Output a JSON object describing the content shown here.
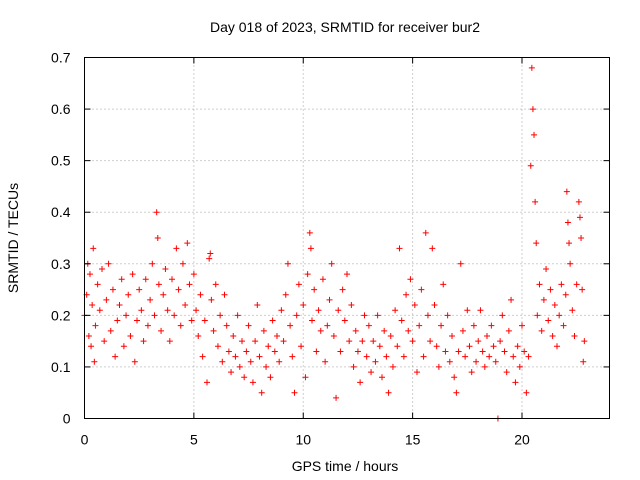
{
  "chart_data": {
    "type": "scatter",
    "title": "Day 018 of 2023, SRMTID for receiver bur2",
    "xlabel": "GPS time / hours",
    "ylabel": "SRMTID / TECUs",
    "xlim": [
      0,
      24
    ],
    "ylim": [
      0,
      0.7
    ],
    "xticks": [
      0,
      5,
      10,
      15,
      20
    ],
    "yticks": [
      0,
      0.1,
      0.2,
      0.3,
      0.4,
      0.5,
      0.6,
      0.7
    ],
    "ytick_labels": [
      "0",
      "0.1",
      "0.2",
      "0.3",
      "0.4",
      "0.5",
      "0.6",
      "0.7"
    ],
    "grid": true,
    "marker": "+",
    "color": "#ff0000",
    "series": [
      {
        "name": "bur2",
        "points": [
          [
            0.0,
            0.2
          ],
          [
            0.1,
            0.24
          ],
          [
            0.15,
            0.3
          ],
          [
            0.2,
            0.16
          ],
          [
            0.25,
            0.28
          ],
          [
            0.3,
            0.14
          ],
          [
            0.35,
            0.22
          ],
          [
            0.4,
            0.33
          ],
          [
            0.45,
            0.11
          ],
          [
            0.5,
            0.18
          ],
          [
            0.6,
            0.26
          ],
          [
            0.7,
            0.21
          ],
          [
            0.8,
            0.29
          ],
          [
            0.9,
            0.15
          ],
          [
            1.0,
            0.23
          ],
          [
            1.1,
            0.3
          ],
          [
            1.2,
            0.17
          ],
          [
            1.3,
            0.25
          ],
          [
            1.4,
            0.12
          ],
          [
            1.5,
            0.19
          ],
          [
            1.6,
            0.22
          ],
          [
            1.7,
            0.27
          ],
          [
            1.8,
            0.14
          ],
          [
            1.9,
            0.2
          ],
          [
            2.0,
            0.24
          ],
          [
            2.1,
            0.16
          ],
          [
            2.2,
            0.28
          ],
          [
            2.3,
            0.11
          ],
          [
            2.4,
            0.19
          ],
          [
            2.5,
            0.25
          ],
          [
            2.6,
            0.21
          ],
          [
            2.7,
            0.15
          ],
          [
            2.8,
            0.27
          ],
          [
            2.9,
            0.18
          ],
          [
            3.0,
            0.23
          ],
          [
            3.1,
            0.3
          ],
          [
            3.2,
            0.2
          ],
          [
            3.3,
            0.4
          ],
          [
            3.35,
            0.35
          ],
          [
            3.4,
            0.26
          ],
          [
            3.5,
            0.17
          ],
          [
            3.6,
            0.24
          ],
          [
            3.7,
            0.29
          ],
          [
            3.8,
            0.21
          ],
          [
            3.9,
            0.15
          ],
          [
            4.0,
            0.27
          ],
          [
            4.1,
            0.2
          ],
          [
            4.2,
            0.33
          ],
          [
            4.3,
            0.25
          ],
          [
            4.4,
            0.18
          ],
          [
            4.5,
            0.3
          ],
          [
            4.6,
            0.22
          ],
          [
            4.7,
            0.34
          ],
          [
            4.8,
            0.26
          ],
          [
            4.9,
            0.19
          ],
          [
            5.0,
            0.28
          ],
          [
            5.1,
            0.21
          ],
          [
            5.2,
            0.16
          ],
          [
            5.3,
            0.24
          ],
          [
            5.4,
            0.12
          ],
          [
            5.5,
            0.19
          ],
          [
            5.6,
            0.07
          ],
          [
            5.7,
            0.31
          ],
          [
            5.75,
            0.32
          ],
          [
            5.8,
            0.23
          ],
          [
            5.9,
            0.17
          ],
          [
            6.0,
            0.26
          ],
          [
            6.1,
            0.14
          ],
          [
            6.2,
            0.2
          ],
          [
            6.3,
            0.11
          ],
          [
            6.4,
            0.24
          ],
          [
            6.5,
            0.18
          ],
          [
            6.6,
            0.13
          ],
          [
            6.7,
            0.09
          ],
          [
            6.8,
            0.16
          ],
          [
            6.9,
            0.12
          ],
          [
            7.0,
            0.2
          ],
          [
            7.1,
            0.1
          ],
          [
            7.2,
            0.15
          ],
          [
            7.3,
            0.08
          ],
          [
            7.4,
            0.13
          ],
          [
            7.5,
            0.18
          ],
          [
            7.6,
            0.11
          ],
          [
            7.7,
            0.07
          ],
          [
            7.8,
            0.15
          ],
          [
            7.9,
            0.22
          ],
          [
            8.0,
            0.12
          ],
          [
            8.1,
            0.05
          ],
          [
            8.2,
            0.17
          ],
          [
            8.3,
            0.1
          ],
          [
            8.4,
            0.14
          ],
          [
            8.5,
            0.08
          ],
          [
            8.6,
            0.19
          ],
          [
            8.7,
            0.13
          ],
          [
            8.8,
            0.16
          ],
          [
            8.9,
            0.11
          ],
          [
            9.0,
            0.21
          ],
          [
            9.1,
            0.15
          ],
          [
            9.2,
            0.24
          ],
          [
            9.3,
            0.3
          ],
          [
            9.4,
            0.18
          ],
          [
            9.5,
            0.12
          ],
          [
            9.6,
            0.05
          ],
          [
            9.7,
            0.2
          ],
          [
            9.8,
            0.26
          ],
          [
            9.9,
            0.14
          ],
          [
            10.0,
            0.22
          ],
          [
            10.1,
            0.08
          ],
          [
            10.2,
            0.28
          ],
          [
            10.3,
            0.36
          ],
          [
            10.35,
            0.33
          ],
          [
            10.4,
            0.19
          ],
          [
            10.5,
            0.25
          ],
          [
            10.6,
            0.13
          ],
          [
            10.7,
            0.21
          ],
          [
            10.8,
            0.17
          ],
          [
            10.9,
            0.27
          ],
          [
            11.0,
            0.11
          ],
          [
            11.1,
            0.18
          ],
          [
            11.2,
            0.23
          ],
          [
            11.3,
            0.3
          ],
          [
            11.4,
            0.16
          ],
          [
            11.5,
            0.04
          ],
          [
            11.6,
            0.21
          ],
          [
            11.7,
            0.13
          ],
          [
            11.8,
            0.25
          ],
          [
            11.9,
            0.19
          ],
          [
            12.0,
            0.28
          ],
          [
            12.1,
            0.15
          ],
          [
            12.2,
            0.22
          ],
          [
            12.3,
            0.1
          ],
          [
            12.4,
            0.17
          ],
          [
            12.5,
            0.13
          ],
          [
            12.6,
            0.07
          ],
          [
            12.7,
            0.15
          ],
          [
            12.8,
            0.2
          ],
          [
            12.9,
            0.12
          ],
          [
            13.0,
            0.18
          ],
          [
            13.1,
            0.09
          ],
          [
            13.2,
            0.15
          ],
          [
            13.3,
            0.11
          ],
          [
            13.4,
            0.2
          ],
          [
            13.5,
            0.14
          ],
          [
            13.6,
            0.08
          ],
          [
            13.7,
            0.17
          ],
          [
            13.8,
            0.12
          ],
          [
            13.9,
            0.05
          ],
          [
            14.0,
            0.16
          ],
          [
            14.1,
            0.1
          ],
          [
            14.2,
            0.21
          ],
          [
            14.3,
            0.14
          ],
          [
            14.4,
            0.33
          ],
          [
            14.5,
            0.19
          ],
          [
            14.6,
            0.12
          ],
          [
            14.7,
            0.24
          ],
          [
            14.8,
            0.17
          ],
          [
            14.9,
            0.27
          ],
          [
            15.0,
            0.15
          ],
          [
            15.1,
            0.22
          ],
          [
            15.2,
            0.09
          ],
          [
            15.3,
            0.18
          ],
          [
            15.4,
            0.25
          ],
          [
            15.5,
            0.12
          ],
          [
            15.6,
            0.36
          ],
          [
            15.7,
            0.2
          ],
          [
            15.8,
            0.15
          ],
          [
            15.9,
            0.33
          ],
          [
            16.0,
            0.22
          ],
          [
            16.1,
            0.14
          ],
          [
            16.2,
            0.1
          ],
          [
            16.3,
            0.18
          ],
          [
            16.4,
            0.26
          ],
          [
            16.5,
            0.13
          ],
          [
            16.6,
            0.2
          ],
          [
            16.7,
            0.11
          ],
          [
            16.8,
            0.16
          ],
          [
            16.9,
            0.08
          ],
          [
            17.0,
            0.05
          ],
          [
            17.1,
            0.13
          ],
          [
            17.2,
            0.3
          ],
          [
            17.3,
            0.17
          ],
          [
            17.4,
            0.12
          ],
          [
            17.5,
            0.21
          ],
          [
            17.6,
            0.14
          ],
          [
            17.7,
            0.09
          ],
          [
            17.8,
            0.18
          ],
          [
            17.9,
            0.11
          ],
          [
            18.0,
            0.15
          ],
          [
            18.1,
            0.21
          ],
          [
            18.2,
            0.13
          ],
          [
            18.3,
            0.1
          ],
          [
            18.4,
            0.16
          ],
          [
            18.5,
            0.12
          ],
          [
            18.6,
            0.18
          ],
          [
            18.7,
            0.14
          ],
          [
            18.8,
            0.11
          ],
          [
            18.9,
            0.0
          ],
          [
            19.0,
            0.15
          ],
          [
            19.1,
            0.2
          ],
          [
            19.2,
            0.13
          ],
          [
            19.3,
            0.09
          ],
          [
            19.4,
            0.17
          ],
          [
            19.5,
            0.23
          ],
          [
            19.6,
            0.12
          ],
          [
            19.7,
            0.07
          ],
          [
            19.8,
            0.14
          ],
          [
            19.9,
            0.1
          ],
          [
            20.0,
            0.18
          ],
          [
            20.1,
            0.13
          ],
          [
            20.2,
            0.05
          ],
          [
            20.3,
            0.12
          ],
          [
            20.4,
            0.49
          ],
          [
            20.45,
            0.68
          ],
          [
            20.5,
            0.6
          ],
          [
            20.55,
            0.55
          ],
          [
            20.6,
            0.42
          ],
          [
            20.65,
            0.34
          ],
          [
            20.7,
            0.2
          ],
          [
            20.8,
            0.26
          ],
          [
            20.9,
            0.17
          ],
          [
            21.0,
            0.23
          ],
          [
            21.1,
            0.29
          ],
          [
            21.2,
            0.19
          ],
          [
            21.3,
            0.25
          ],
          [
            21.4,
            0.16
          ],
          [
            21.5,
            0.22
          ],
          [
            21.6,
            0.14
          ],
          [
            21.7,
            0.2
          ],
          [
            21.8,
            0.26
          ],
          [
            21.9,
            0.18
          ],
          [
            22.0,
            0.24
          ],
          [
            22.05,
            0.44
          ],
          [
            22.1,
            0.38
          ],
          [
            22.15,
            0.34
          ],
          [
            22.2,
            0.3
          ],
          [
            22.3,
            0.21
          ],
          [
            22.4,
            0.16
          ],
          [
            22.5,
            0.26
          ],
          [
            22.6,
            0.42
          ],
          [
            22.65,
            0.39
          ],
          [
            22.7,
            0.35
          ],
          [
            22.75,
            0.25
          ],
          [
            22.8,
            0.11
          ],
          [
            22.85,
            0.15
          ]
        ]
      }
    ]
  }
}
